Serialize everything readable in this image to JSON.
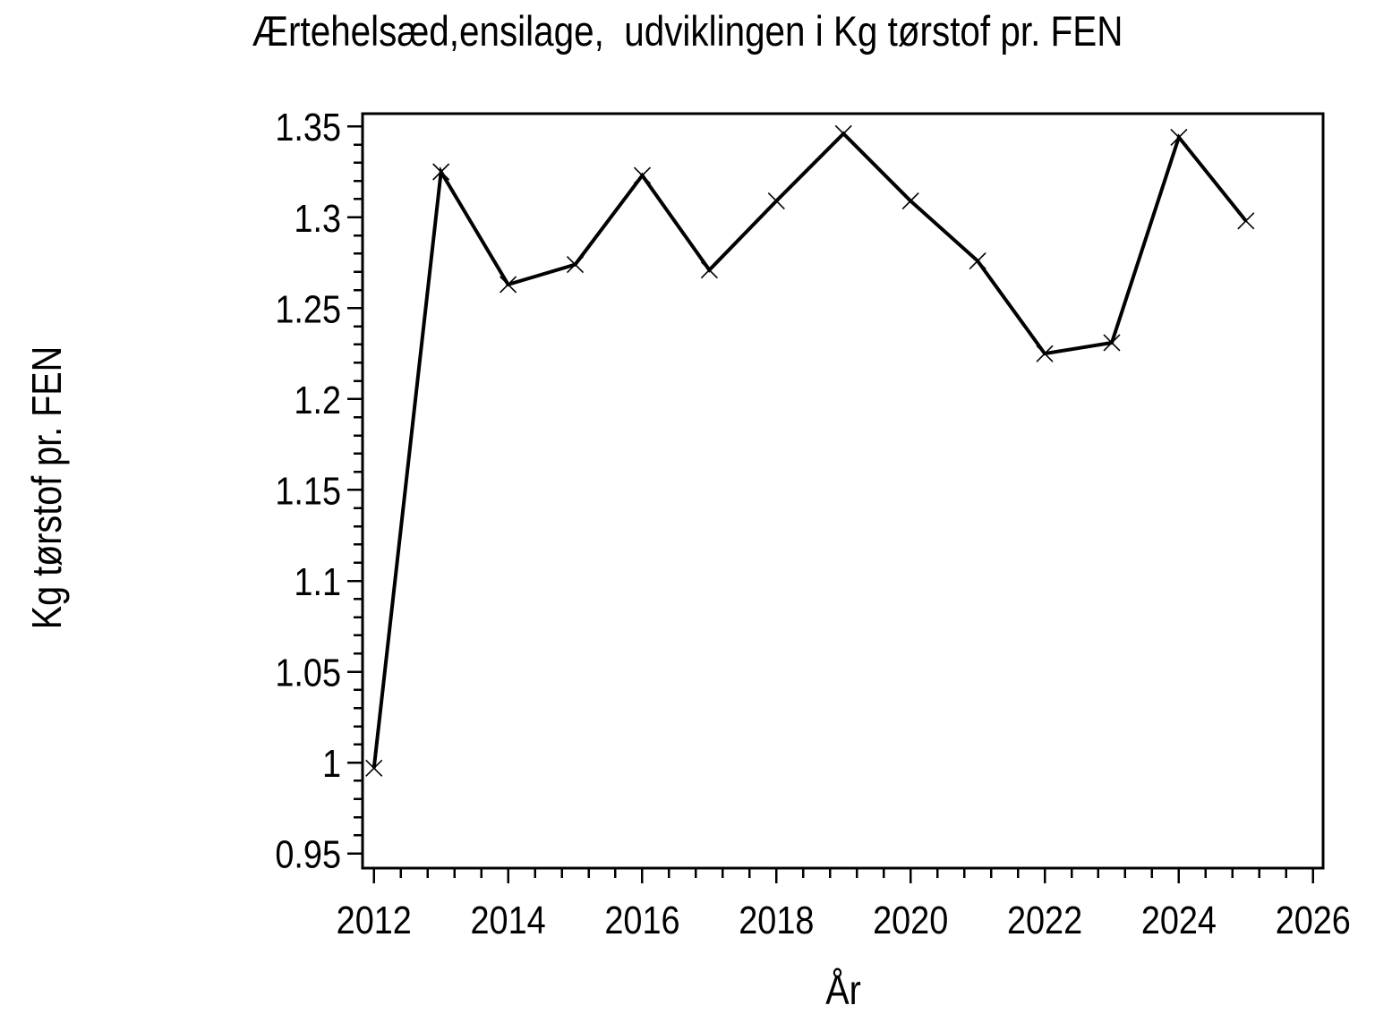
{
  "chart_data": {
    "type": "line",
    "title": "Ærtehelsæd,ensilage,  udviklingen i Kg tørstof pr. FEN",
    "xlabel": "År",
    "ylabel": "Kg tørstof pr. FEN",
    "x": [
      2012,
      2013,
      2014,
      2015,
      2016,
      2017,
      2018,
      2019,
      2020,
      2021,
      2022,
      2023,
      2024,
      2025
    ],
    "y": [
      0.997,
      1.325,
      1.263,
      1.274,
      1.323,
      1.271,
      1.309,
      1.346,
      1.309,
      1.276,
      1.225,
      1.231,
      1.344,
      1.298
    ],
    "marker": "x",
    "line_color": "#000000",
    "text_color": "#000000",
    "background_color": "#ffffff",
    "grid": false,
    "legend": null,
    "xlim": [
      2011.83,
      2026.15
    ],
    "ylim": [
      0.942,
      1.357
    ],
    "x_major_ticks": [
      2012,
      2014,
      2016,
      2018,
      2020,
      2022,
      2024,
      2026
    ],
    "x_tick_labels": [
      "2012",
      "2014",
      "2016",
      "2018",
      "2020",
      "2022",
      "2024",
      "2026"
    ],
    "x_minor_tick_step": 0.4,
    "y_major_ticks": [
      0.95,
      1,
      1.05,
      1.1,
      1.15,
      1.2,
      1.25,
      1.3,
      1.35
    ],
    "y_tick_labels": [
      "0.95",
      "1",
      "1.05",
      "1.1",
      "1.15",
      "1.2",
      "1.25",
      "1.3",
      "1.35"
    ],
    "y_minor_tick_step": 0.01
  }
}
